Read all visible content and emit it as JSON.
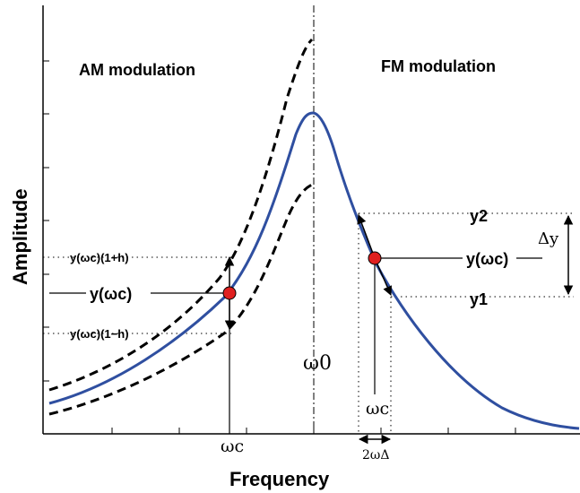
{
  "axes": {
    "xlabel": "Frequency",
    "ylabel": "Amplitude"
  },
  "sections": {
    "am_title": "AM modulation",
    "fm_title": "FM modulation"
  },
  "am": {
    "upper_label": "y(ωc)(1+h)",
    "center_label": "y(ωc)",
    "lower_label": "y(ωc)(1−h)",
    "omega_c": "ωc"
  },
  "fm": {
    "y2": "y2",
    "yc": "y(ωc)",
    "y1": "y1",
    "delta_y": "Δy",
    "omega_c": "ωc",
    "two_omega_delta": "2ωΔ"
  },
  "resonance": {
    "omega_0": "ω0"
  },
  "colors": {
    "curve": "#2f4fa0",
    "dot": "#e02020",
    "axis": "#000000"
  }
}
